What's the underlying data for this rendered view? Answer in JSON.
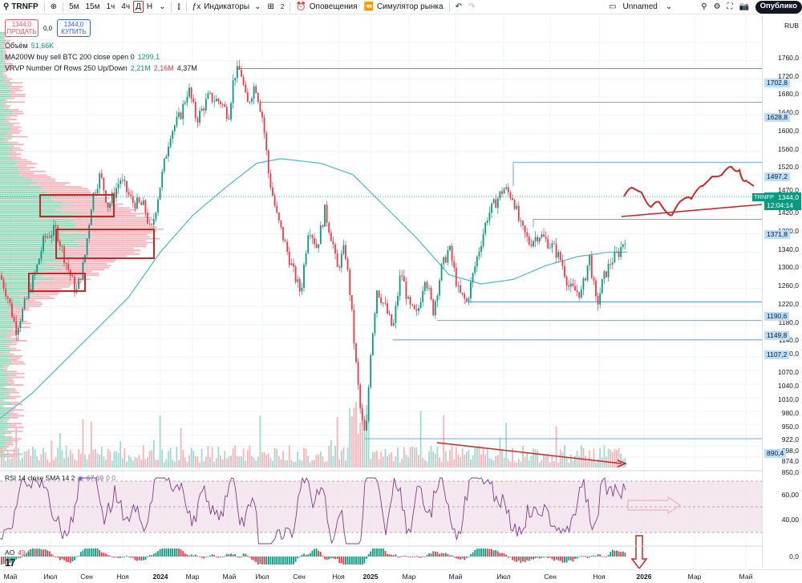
{
  "toolbar": {
    "symbol": "TRNFP",
    "intervals": [
      "5м",
      "15м",
      "1ч",
      "4ч",
      "Д",
      "Н"
    ],
    "selected_interval": "Д",
    "indicators_label": "Индикаторы",
    "layout_count": "2",
    "alerts_label": "Оповещения",
    "replay_label": "Симулятор рынка",
    "layout_name": "Unnamed",
    "publish_label": "Опублико"
  },
  "trade": {
    "sell_price": "1344,0",
    "sell_label": "ПРОДАТЬ",
    "spread": "0,0",
    "buy_price": "1344,0",
    "buy_label": "КУПИТЬ"
  },
  "legends": {
    "volume": {
      "name": "Объём",
      "value": "51,66K"
    },
    "ma": {
      "name": "MA200W buy sell BTC 200 close open 0",
      "value": "1299,1"
    },
    "vrvp": {
      "name": "VRVP Number Of Rows 250 Up/Down",
      "up": "2,21M",
      "down": "2,16M",
      "total": "4,37M"
    },
    "rsi": {
      "name": "RSI 14 close SMA 14 2",
      "value": "67,69",
      "extra": "0 0"
    },
    "ao": {
      "name": "AO",
      "value": "49,0"
    }
  },
  "price_axis": {
    "currency": "RUB",
    "ticks": [
      "1760,0",
      "1720,0",
      "1680,0",
      "1640,0",
      "1600,0",
      "1560,0",
      "1520,0",
      "1470,0",
      "1420,0",
      "1380,0",
      "1340,0",
      "1300,0",
      "1260,0",
      "1220,0",
      "1180,0",
      "1140,0",
      "1110,0",
      "1070,0",
      "1040,0",
      "1010,0",
      "980,0",
      "950,0",
      "922,0",
      "898,0",
      "874,0",
      "850,0"
    ],
    "level_labels": [
      "1702,8",
      "1628,8",
      "1497,2",
      "1371,8",
      "1190,6",
      "1149,8",
      "1107,2",
      "890,4"
    ],
    "current_symbol": "TRNFP",
    "current_price": "1344,0",
    "countdown": "12:04:14",
    "rsi_ticks": [
      "60,00",
      "40,00"
    ],
    "ao_tick": "0,0"
  },
  "time_axis": [
    "Май",
    "Июл",
    "Сен",
    "Ноя",
    "2024",
    "Мар",
    "Май",
    "Июл",
    "Сен",
    "Ноя",
    "2025",
    "Мар",
    "Май",
    "Июл",
    "Сен",
    "Ноя",
    "2026",
    "Мар",
    "Май"
  ],
  "colors": {
    "up": "#089981",
    "down": "#f23645",
    "ma": "#4fb6c8",
    "level": "#5b9bd5",
    "annotation": "#c62828",
    "rsi": "#7e3f7f",
    "rsi_band": "#f3e1ec"
  }
}
